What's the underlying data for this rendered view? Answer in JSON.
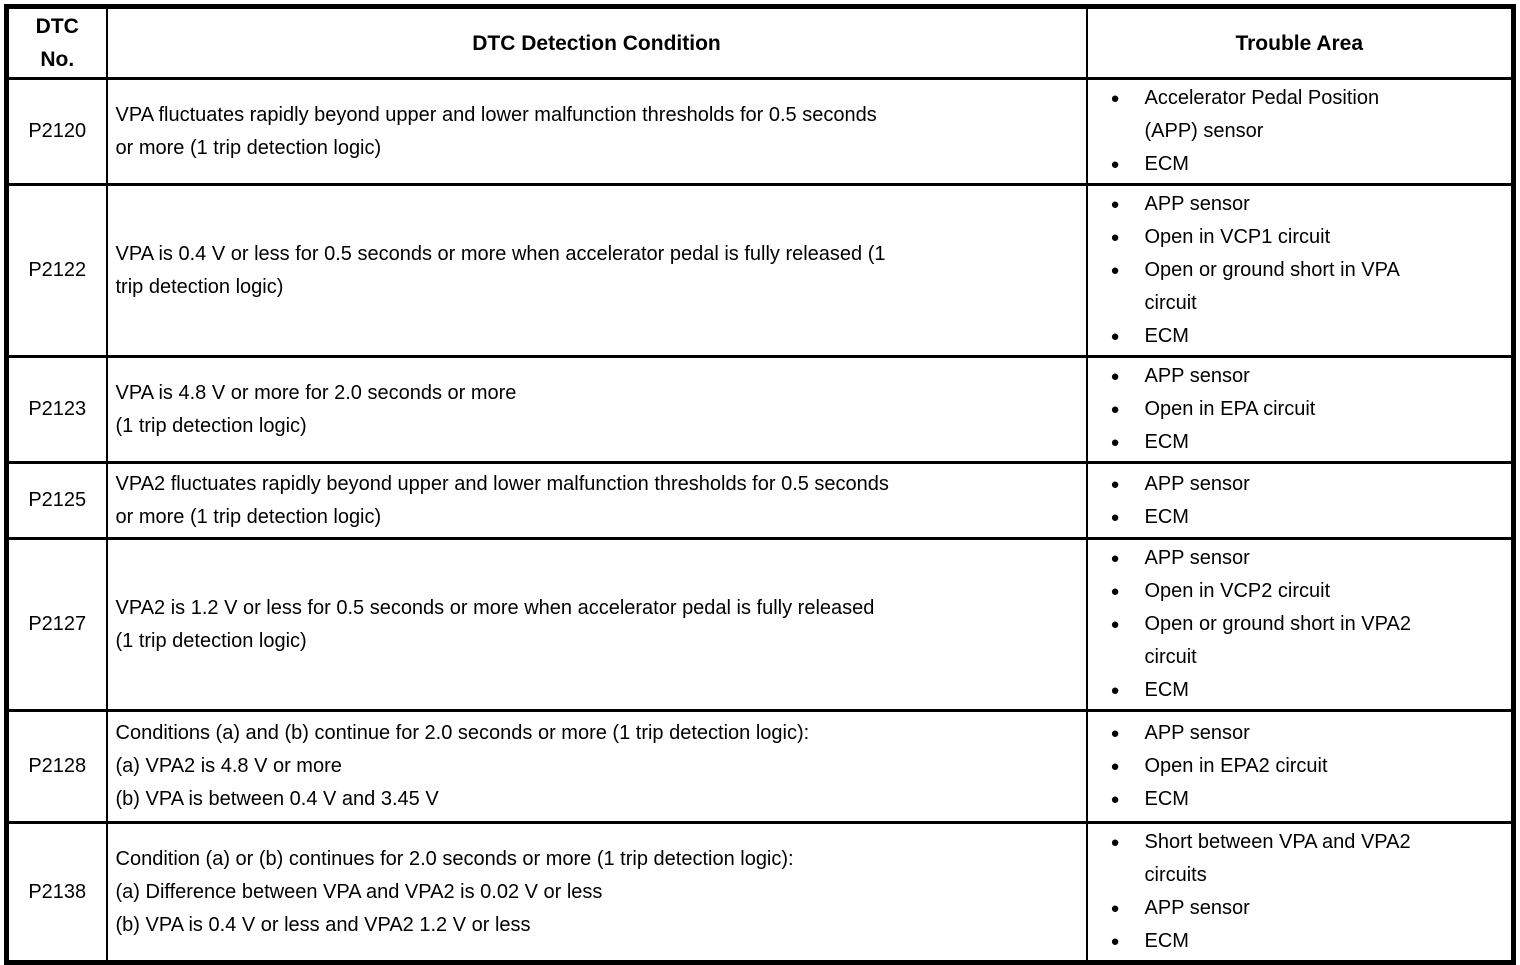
{
  "header": {
    "col_dtc_no": "DTC\nNo.",
    "col_condition": "DTC Detection Condition",
    "col_trouble": "Trouble Area"
  },
  "rows": [
    {
      "dtc_no": "P2120",
      "condition": [
        "VPA fluctuates rapidly beyond upper and lower malfunction thresholds for 0.5 seconds",
        "or more (1 trip detection logic)"
      ],
      "trouble": [
        "Accelerator Pedal Position\n(APP) sensor",
        "ECM"
      ]
    },
    {
      "dtc_no": "P2122",
      "condition": [
        "VPA is 0.4 V or less for 0.5 seconds or more when accelerator pedal is fully released (1",
        "trip detection logic)"
      ],
      "trouble": [
        "APP sensor",
        "Open in VCP1 circuit",
        "Open or ground short in VPA\ncircuit",
        "ECM"
      ]
    },
    {
      "dtc_no": "P2123",
      "condition": [
        "VPA is 4.8 V or more for 2.0 seconds or more",
        "(1 trip detection logic)"
      ],
      "trouble": [
        "APP sensor",
        "Open in EPA circuit",
        "ECM"
      ]
    },
    {
      "dtc_no": "P2125",
      "condition": [
        "VPA2 fluctuates rapidly beyond upper and lower malfunction thresholds for 0.5 seconds",
        "or more (1 trip detection logic)"
      ],
      "trouble": [
        "APP sensor",
        "ECM"
      ]
    },
    {
      "dtc_no": "P2127",
      "condition": [
        "VPA2 is 1.2 V or less for 0.5 seconds or more when accelerator pedal is fully released",
        "(1 trip detection logic)"
      ],
      "trouble": [
        "APP sensor",
        "Open in VCP2 circuit",
        "Open or ground short in VPA2\ncircuit",
        "ECM"
      ]
    },
    {
      "dtc_no": "P2128",
      "condition": [
        "Conditions (a) and (b) continue for 2.0 seconds or more (1 trip detection logic):",
        "(a) VPA2 is 4.8 V or more",
        "(b) VPA is between 0.4 V and 3.45 V"
      ],
      "trouble": [
        "APP sensor",
        "Open in EPA2 circuit",
        "ECM"
      ]
    },
    {
      "dtc_no": "P2138",
      "condition": [
        "Condition (a) or (b) continues for 2.0 seconds or more (1 trip detection logic):",
        "(a) Difference between VPA and VPA2 is 0.02 V or less",
        "(b) VPA is 0.4 V or less and VPA2 1.2 V or less"
      ],
      "trouble": [
        "Short between VPA and VPA2\ncircuits",
        "APP sensor",
        "ECM"
      ]
    }
  ]
}
